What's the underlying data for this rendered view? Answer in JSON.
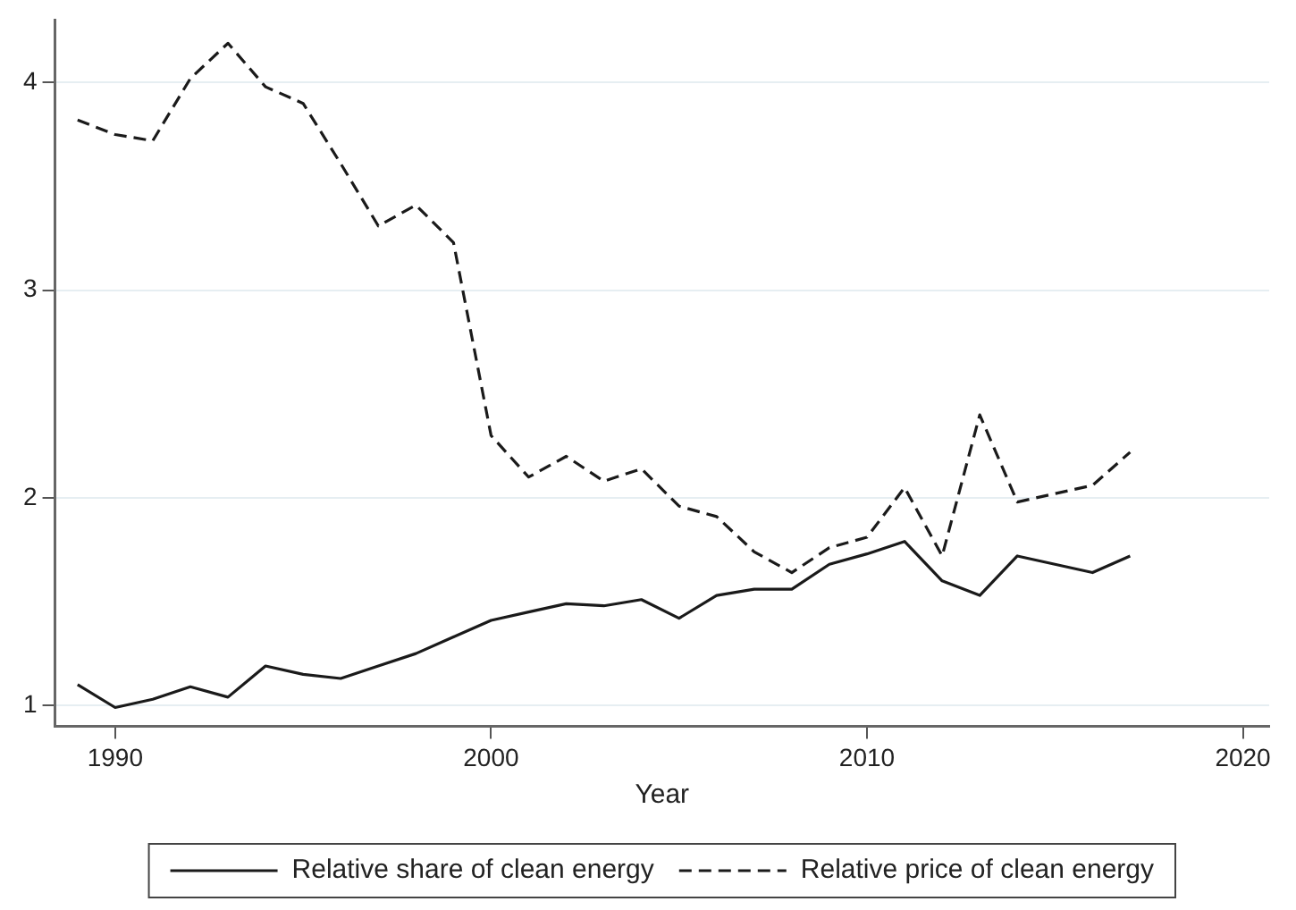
{
  "chart_data": {
    "type": "line",
    "xlabel": "Year",
    "x": [
      1989,
      1990,
      1991,
      1992,
      1993,
      1994,
      1995,
      1996,
      1997,
      1998,
      1999,
      2000,
      2001,
      2002,
      2003,
      2004,
      2005,
      2006,
      2007,
      2008,
      2009,
      2010,
      2011,
      2012,
      2013,
      2014,
      2015,
      2016,
      2017
    ],
    "series": [
      {
        "name": "Relative share of clean energy",
        "color": "#1a1a1a",
        "line_style": "solid",
        "values": [
          1.1,
          0.99,
          1.03,
          1.09,
          1.04,
          1.19,
          1.15,
          1.13,
          1.19,
          1.25,
          1.33,
          1.41,
          1.45,
          1.49,
          1.48,
          1.51,
          1.42,
          1.53,
          1.56,
          1.56,
          1.68,
          1.73,
          1.79,
          1.6,
          1.53,
          1.72,
          1.68,
          1.64,
          1.72
        ]
      },
      {
        "name": "Relative price of clean energy",
        "color": "#1a1a1a",
        "line_style": "dashed",
        "values": [
          3.82,
          3.75,
          3.72,
          4.02,
          4.19,
          3.98,
          3.9,
          3.61,
          3.31,
          3.41,
          3.23,
          2.3,
          2.1,
          2.2,
          2.08,
          2.14,
          1.96,
          1.91,
          1.74,
          1.64,
          1.76,
          1.81,
          2.05,
          1.72,
          2.4,
          1.98,
          2.02,
          2.06,
          2.22
        ]
      }
    ],
    "xlim": [
      1988.4,
      2020.7
    ],
    "xticks": [
      1990,
      2000,
      2010,
      2020
    ],
    "ylim": [
      0.9,
      4.3
    ],
    "yticks": [
      1,
      2,
      3,
      4
    ],
    "grid": "y",
    "legend": "bottom",
    "marker": "none"
  }
}
